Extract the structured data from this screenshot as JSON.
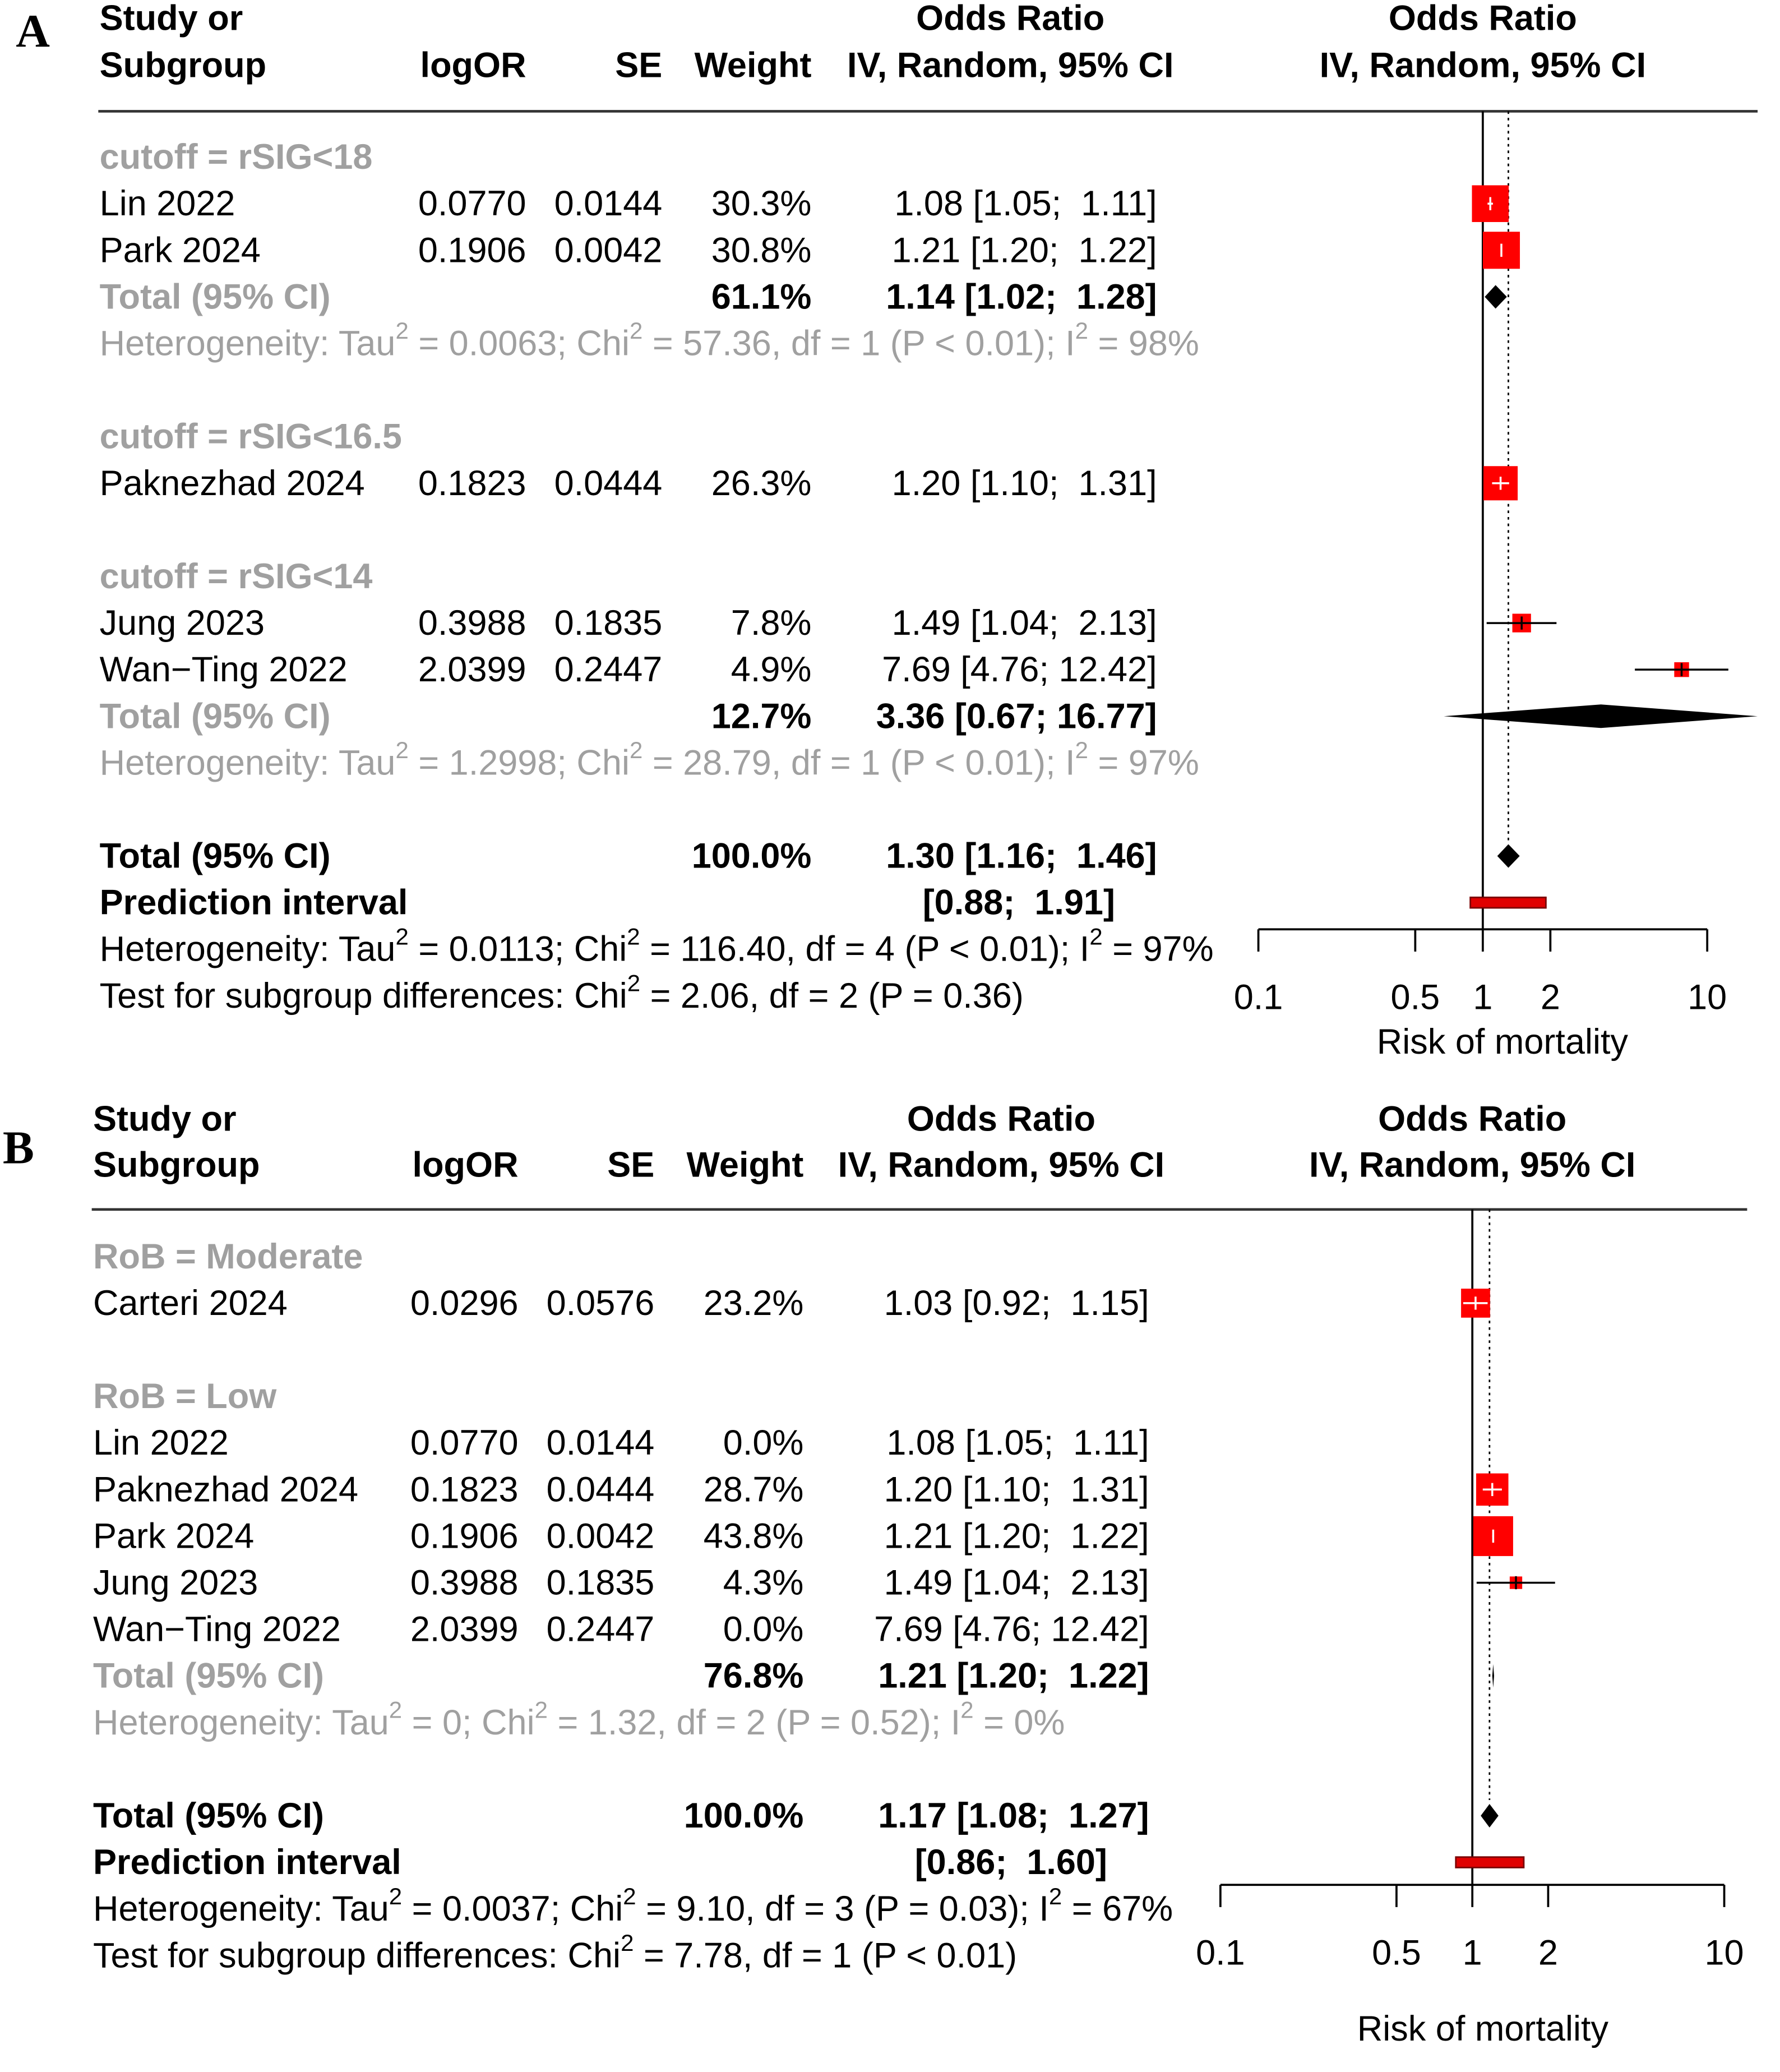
{
  "chart_data": [
    {
      "type": "forest",
      "panel_label": "A",
      "header": {
        "study": [
          "Study or",
          "Subgroup"
        ],
        "logor": "logOR",
        "se": "SE",
        "weight": "Weight",
        "or_title": "Odds Ratio",
        "or_sub": "IV, Random, 95% CI",
        "plot_title": "Odds Ratio",
        "plot_sub": "IV, Random, 95% CI"
      },
      "rows": [
        {
          "type": "subgroup",
          "label": "cutoff = rSIG<18"
        },
        {
          "type": "study",
          "study": "Lin 2022",
          "logor": "0.0770",
          "se": "0.0144",
          "weight": "30.3%",
          "ci": "1.08 [1.05;  1.11]",
          "or": 1.08,
          "lo": 1.05,
          "hi": 1.11,
          "w": 30.3
        },
        {
          "type": "study",
          "study": "Park 2024",
          "logor": "0.1906",
          "se": "0.0042",
          "weight": "30.8%",
          "ci": "1.21 [1.20;  1.22]",
          "or": 1.21,
          "lo": 1.2,
          "hi": 1.22,
          "w": 30.8
        },
        {
          "type": "subtotal",
          "label": "Total (95% CI)",
          "weight": "61.1%",
          "ci": "1.14 [1.02;  1.28]",
          "or": 1.14,
          "lo": 1.02,
          "hi": 1.28
        },
        {
          "type": "het",
          "text": "Heterogeneity: Tau² = 0.0063; Chi² = 57.36, df = 1 (P < 0.01); I² = 98%"
        },
        {
          "type": "subgroup",
          "label": "cutoff = rSIG<16.5"
        },
        {
          "type": "study",
          "study": "Paknezhad 2024",
          "logor": "0.1823",
          "se": "0.0444",
          "weight": "26.3%",
          "ci": "1.20 [1.10;  1.31]",
          "or": 1.2,
          "lo": 1.1,
          "hi": 1.31,
          "w": 26.3
        },
        {
          "type": "subgroup",
          "label": "cutoff = rSIG<14"
        },
        {
          "type": "study",
          "study": "Jung 2023",
          "logor": "0.3988",
          "se": "0.1835",
          "weight": "7.8%",
          "ci": "1.49 [1.04;  2.13]",
          "or": 1.49,
          "lo": 1.04,
          "hi": 2.13,
          "w": 7.8
        },
        {
          "type": "study",
          "study": "Wan−Ting 2022",
          "logor": "2.0399",
          "se": "0.2447",
          "weight": "4.9%",
          "ci": "7.69 [4.76; 12.42]",
          "or": 7.69,
          "lo": 4.76,
          "hi": 12.42,
          "w": 4.9
        },
        {
          "type": "subtotal",
          "label": "Total (95% CI)",
          "weight": "12.7%",
          "ci": "3.36 [0.67; 16.77]",
          "or": 3.36,
          "lo": 0.67,
          "hi": 16.77
        },
        {
          "type": "het",
          "text": "Heterogeneity: Tau² = 1.2998; Chi² = 28.79, df = 1 (P < 0.01); I² = 97%"
        },
        {
          "type": "overall",
          "label": "Total (95% CI)",
          "weight": "100.0%",
          "ci": "1.30 [1.16;  1.46]",
          "or": 1.3,
          "lo": 1.16,
          "hi": 1.46
        },
        {
          "type": "pi",
          "label": "Prediction interval",
          "ci": "[0.88;  1.91]",
          "lo": 0.88,
          "hi": 1.91
        },
        {
          "type": "het_overall",
          "text": "Heterogeneity: Tau² = 0.0113; Chi² = 116.40, df = 4 (P < 0.01); I² = 97%"
        },
        {
          "type": "test",
          "text": "Test for subgroup differences: Chi² = 2.06, df = 2 (P = 0.36)"
        }
      ],
      "axis": {
        "scale": "log",
        "range": [
          0.1,
          10
        ],
        "ticks": [
          0.1,
          0.5,
          1,
          2,
          10
        ],
        "tick_labels": [
          "0.1",
          "0.5",
          "1",
          "2",
          "10"
        ],
        "xlabel": "Risk of mortality"
      }
    },
    {
      "type": "forest",
      "panel_label": "B",
      "header": {
        "study": [
          "Study or",
          "Subgroup"
        ],
        "logor": "logOR",
        "se": "SE",
        "weight": "Weight",
        "or_title": "Odds Ratio",
        "or_sub": "IV, Random, 95% CI",
        "plot_title": "Odds Ratio",
        "plot_sub": "IV, Random, 95% CI"
      },
      "rows": [
        {
          "type": "subgroup",
          "label": "RoB = Moderate"
        },
        {
          "type": "study",
          "study": "Carteri 2024",
          "logor": "0.0296",
          "se": "0.0576",
          "weight": "23.2%",
          "ci": "1.03 [0.92;  1.15]",
          "or": 1.03,
          "lo": 0.92,
          "hi": 1.15,
          "w": 23.2
        },
        {
          "type": "subgroup",
          "label": "RoB = Low"
        },
        {
          "type": "study",
          "study": "Lin 2022",
          "logor": "0.0770",
          "se": "0.0144",
          "weight": "0.0%",
          "ci": "1.08 [1.05;  1.11]",
          "or": 1.08,
          "lo": 1.05,
          "hi": 1.11,
          "w": 0
        },
        {
          "type": "study",
          "study": "Paknezhad 2024",
          "logor": "0.1823",
          "se": "0.0444",
          "weight": "28.7%",
          "ci": "1.20 [1.10;  1.31]",
          "or": 1.2,
          "lo": 1.1,
          "hi": 1.31,
          "w": 28.7
        },
        {
          "type": "study",
          "study": "Park 2024",
          "logor": "0.1906",
          "se": "0.0042",
          "weight": "43.8%",
          "ci": "1.21 [1.20;  1.22]",
          "or": 1.21,
          "lo": 1.2,
          "hi": 1.22,
          "w": 43.8
        },
        {
          "type": "study",
          "study": "Jung 2023",
          "logor": "0.3988",
          "se": "0.1835",
          "weight": "4.3%",
          "ci": "1.49 [1.04;  2.13]",
          "or": 1.49,
          "lo": 1.04,
          "hi": 2.13,
          "w": 4.3
        },
        {
          "type": "study",
          "study": "Wan−Ting 2022",
          "logor": "2.0399",
          "se": "0.2447",
          "weight": "0.0%",
          "ci": "7.69 [4.76; 12.42]",
          "or": 7.69,
          "lo": 4.76,
          "hi": 12.42,
          "w": 0
        },
        {
          "type": "subtotal",
          "label": "Total (95% CI)",
          "weight": "76.8%",
          "ci": "1.21 [1.20;  1.22]",
          "or": 1.21,
          "lo": 1.2,
          "hi": 1.22
        },
        {
          "type": "het",
          "text": "Heterogeneity: Tau² = 0; Chi² = 1.32, df = 2 (P = 0.52); I² = 0%"
        },
        {
          "type": "overall",
          "label": "Total (95% CI)",
          "weight": "100.0%",
          "ci": "1.17 [1.08;  1.27]",
          "or": 1.17,
          "lo": 1.08,
          "hi": 1.27
        },
        {
          "type": "pi",
          "label": "Prediction interval",
          "ci": "[0.86;  1.60]",
          "lo": 0.86,
          "hi": 1.6
        },
        {
          "type": "het_overall",
          "text": "Heterogeneity: Tau² = 0.0037; Chi² = 9.10, df = 3 (P = 0.03); I² = 67%"
        },
        {
          "type": "test",
          "text": "Test for subgroup differences: Chi² = 7.78, df = 1 (P < 0.01)"
        }
      ],
      "axis": {
        "scale": "log",
        "range": [
          0.1,
          10
        ],
        "ticks": [
          0.1,
          0.5,
          1,
          2,
          10
        ],
        "tick_labels": [
          "0.1",
          "0.5",
          "1",
          "2",
          "10"
        ],
        "xlabel": "Risk of mortality"
      }
    }
  ],
  "colors": {
    "square": "#ff0000",
    "diamond": "#000000",
    "subgroup_text": "#a0a0a0",
    "prediction_bar": "#e00000"
  }
}
